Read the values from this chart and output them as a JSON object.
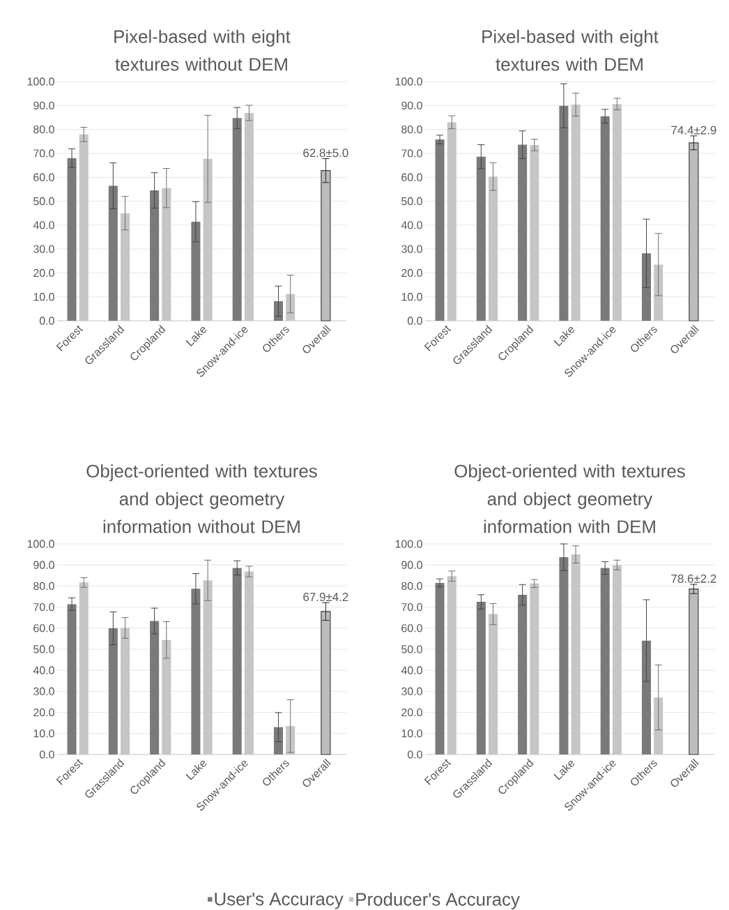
{
  "chart_data": [
    {
      "type": "bar",
      "title": "Pixel-based with eight textures without DEM",
      "categories": [
        "Forest",
        "Grassland",
        "Cropland",
        "Lake",
        "Snow-and-ice",
        "Others",
        "Overall"
      ],
      "ylim": [
        0,
        100
      ],
      "yticks": [
        {
          "value": 0,
          "label": "0.0"
        },
        {
          "value": 10,
          "label": "10.0"
        },
        {
          "value": 20,
          "label": "20.0"
        },
        {
          "value": 30,
          "label": "30.0"
        },
        {
          "value": 40,
          "label": "40.0"
        },
        {
          "value": 50,
          "label": "50.0"
        },
        {
          "value": 60,
          "label": "60.0"
        },
        {
          "value": 70,
          "label": "70.0"
        },
        {
          "value": 80,
          "label": "80.0"
        },
        {
          "value": 90,
          "label": "90.0"
        },
        {
          "value": 100,
          "label": "100.0"
        }
      ],
      "grid": "y",
      "series": [
        {
          "color": "#7a7a7a",
          "values": [
            68.0,
            56.4,
            54.5,
            41.4,
            84.8,
            8.2,
            null
          ],
          "errors": [
            3.9,
            9.6,
            7.4,
            8.4,
            4.4,
            6.3,
            null
          ]
        },
        {
          "color": "#c5c6c6",
          "values": [
            77.9,
            45.0,
            55.5,
            67.7,
            86.9,
            11.2,
            null
          ],
          "errors": [
            3.0,
            7.0,
            8.2,
            18.2,
            3.2,
            7.9,
            null
          ]
        },
        {
          "color": "#404040",
          "values": [
            null,
            null,
            null,
            null,
            null,
            null,
            62.8
          ],
          "errors": [
            null,
            null,
            null,
            null,
            null,
            null,
            5.0
          ],
          "value_labels": [
            null,
            null,
            null,
            null,
            null,
            null,
            "62.8±5.0"
          ]
        }
      ]
    },
    {
      "type": "bar",
      "title": "Pixel-based with eight textures with DEM",
      "categories": [
        "Forest",
        "Grassland",
        "Cropland",
        "Lake",
        "Snow-and-ice",
        "Others",
        "Overall"
      ],
      "ylim": [
        0,
        100
      ],
      "yticks": [
        {
          "value": 0,
          "label": "0.0"
        },
        {
          "value": 10,
          "label": "10.0"
        },
        {
          "value": 20,
          "label": "20.0"
        },
        {
          "value": 30,
          "label": "30.0"
        },
        {
          "value": 40,
          "label": "40.0"
        },
        {
          "value": 50,
          "label": "50.0"
        },
        {
          "value": 60,
          "label": "60.0"
        },
        {
          "value": 70,
          "label": "70.0"
        },
        {
          "value": 80,
          "label": "80.0"
        },
        {
          "value": 90,
          "label": "90.0"
        },
        {
          "value": 100,
          "label": "100.0"
        }
      ],
      "grid": "y",
      "series": [
        {
          "color": "#7a7a7a",
          "values": [
            75.8,
            68.6,
            73.6,
            89.9,
            85.5,
            28.2,
            null
          ],
          "errors": [
            1.8,
            5.0,
            5.8,
            9.2,
            2.9,
            14.3,
            null
          ]
        },
        {
          "color": "#c5c6c6",
          "values": [
            83.0,
            60.3,
            73.5,
            90.4,
            90.6,
            23.5,
            null
          ],
          "errors": [
            2.7,
            5.8,
            2.4,
            4.8,
            2.4,
            13.0,
            null
          ]
        },
        {
          "color": "#404040",
          "values": [
            null,
            null,
            null,
            null,
            null,
            null,
            74.4
          ],
          "errors": [
            null,
            null,
            null,
            null,
            null,
            null,
            2.9
          ],
          "value_labels": [
            null,
            null,
            null,
            null,
            null,
            null,
            "74.4±2.9"
          ]
        }
      ]
    },
    {
      "type": "bar",
      "title": "Object-oriented with textures and object geometry information without DEM",
      "categories": [
        "Forest",
        "Grassland",
        "Cropland",
        "Lake",
        "Snow-and-ice",
        "Others",
        "Overall"
      ],
      "ylim": [
        0,
        100
      ],
      "yticks": [
        {
          "value": 0,
          "label": "0.0"
        },
        {
          "value": 10,
          "label": "10.0"
        },
        {
          "value": 20,
          "label": "20.0"
        },
        {
          "value": 30,
          "label": "30.0"
        },
        {
          "value": 40,
          "label": "40.0"
        },
        {
          "value": 50,
          "label": "50.0"
        },
        {
          "value": 60,
          "label": "60.0"
        },
        {
          "value": 70,
          "label": "70.0"
        },
        {
          "value": 80,
          "label": "80.0"
        },
        {
          "value": 90,
          "label": "90.0"
        },
        {
          "value": 100,
          "label": "100.0"
        }
      ],
      "grid": "y",
      "series": [
        {
          "color": "#7a7a7a",
          "values": [
            71.4,
            59.9,
            63.4,
            78.7,
            88.6,
            13.0,
            null
          ],
          "errors": [
            3.0,
            7.8,
            6.1,
            7.2,
            3.4,
            6.9,
            null
          ]
        },
        {
          "color": "#c5c6c6",
          "values": [
            81.7,
            60.1,
            54.4,
            82.7,
            86.9,
            13.5,
            null
          ],
          "errors": [
            2.3,
            4.9,
            8.7,
            9.6,
            2.5,
            12.5,
            null
          ]
        },
        {
          "color": "#404040",
          "values": [
            null,
            null,
            null,
            null,
            null,
            null,
            67.9
          ],
          "errors": [
            null,
            null,
            null,
            null,
            null,
            null,
            4.2
          ],
          "value_labels": [
            null,
            null,
            null,
            null,
            null,
            null,
            "67.9±4.2"
          ]
        }
      ]
    },
    {
      "type": "bar",
      "title": "Object-oriented with textures and object geometry information with DEM",
      "categories": [
        "Forest",
        "Grassland",
        "Cropland",
        "Lake",
        "Snow-and-ice",
        "Others",
        "Overall"
      ],
      "ylim": [
        0,
        100
      ],
      "yticks": [
        {
          "value": 0,
          "label": "0.0"
        },
        {
          "value": 10,
          "label": "10.0"
        },
        {
          "value": 20,
          "label": "20.0"
        },
        {
          "value": 30,
          "label": "30.0"
        },
        {
          "value": 40,
          "label": "40.0"
        },
        {
          "value": 50,
          "label": "50.0"
        },
        {
          "value": 60,
          "label": "60.0"
        },
        {
          "value": 70,
          "label": "70.0"
        },
        {
          "value": 80,
          "label": "80.0"
        },
        {
          "value": 90,
          "label": "90.0"
        },
        {
          "value": 100,
          "label": "100.0"
        }
      ],
      "grid": "y",
      "legend": "bottom",
      "series": [
        {
          "name": "User's Accuracy",
          "color": "#7a7a7a",
          "values": [
            81.5,
            72.5,
            75.8,
            93.7,
            88.6,
            54.1,
            null
          ],
          "errors": [
            1.9,
            3.4,
            4.9,
            6.3,
            3.0,
            19.4,
            null
          ]
        },
        {
          "name": "Producer's Accuracy",
          "color": "#c5c6c6",
          "values": [
            84.7,
            66.7,
            81.2,
            95.0,
            90.0,
            27.1,
            null
          ],
          "errors": [
            2.4,
            5.0,
            1.9,
            4.1,
            2.3,
            15.4,
            null
          ]
        },
        {
          "color": "#404040",
          "values": [
            null,
            null,
            null,
            null,
            null,
            null,
            78.6
          ],
          "errors": [
            null,
            null,
            null,
            null,
            null,
            null,
            2.2
          ],
          "value_labels": [
            null,
            null,
            null,
            null,
            null,
            null,
            "78.6±2.2"
          ]
        }
      ]
    }
  ]
}
